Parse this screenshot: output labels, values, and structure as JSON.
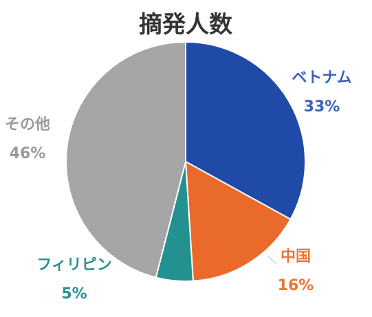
{
  "chart_data": {
    "type": "pie",
    "title": "摘発人数",
    "slices": [
      {
        "label": "ベトナム",
        "value": 33,
        "value_label": "33%",
        "color": "#1f4aa8"
      },
      {
        "label": "中国",
        "value": 16,
        "value_label": "16%",
        "color": "#ea6a2b"
      },
      {
        "label": "フィリピン",
        "value": 5,
        "value_label": "5%",
        "color": "#23918f"
      },
      {
        "label": "その他",
        "value": 46,
        "value_label": "46%",
        "color": "#a6a6a9"
      }
    ],
    "label_colors": [
      "#3a62b4",
      "#ee7435",
      "#2a9094",
      "#9a9a9a"
    ],
    "legend": "none"
  }
}
